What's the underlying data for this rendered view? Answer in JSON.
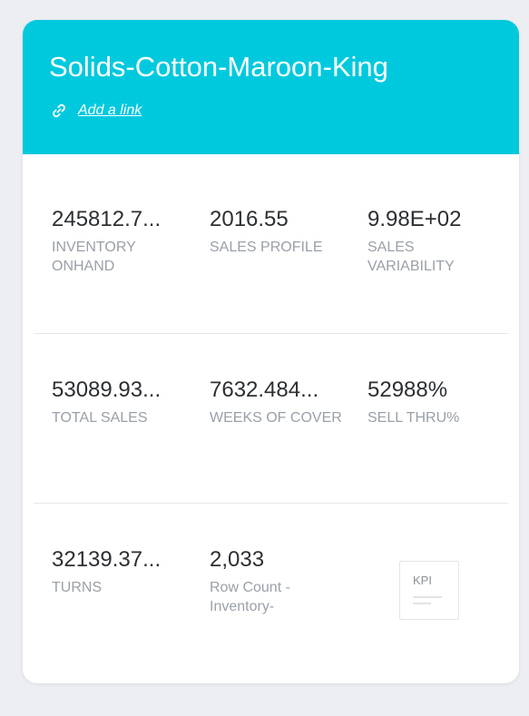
{
  "card": {
    "title": "Solids-Cotton-Maroon-King",
    "link_label": "Add a link",
    "link_icon": "link-icon",
    "header_color": "#00c9de"
  },
  "kpis": [
    {
      "value": "245812.7...",
      "label": "INVENTORY ONHAND"
    },
    {
      "value": "2016.55",
      "label": "SALES PROFILE"
    },
    {
      "value": "9.98E+02",
      "label": "SALES VARIABILITY"
    },
    {
      "value": "53089.93...",
      "label": "TOTAL SALES"
    },
    {
      "value": "7632.484...",
      "label": "WEEKS OF COVER"
    },
    {
      "value": "52988%",
      "label": "SELL THRU%"
    },
    {
      "value": "32139.37...",
      "label": "TURNS"
    },
    {
      "value": "2,033",
      "label": "Row Count - Inventory-"
    }
  ],
  "kpi_thumbnail": {
    "label": "KPI",
    "icon": "kpi-chart-icon"
  }
}
